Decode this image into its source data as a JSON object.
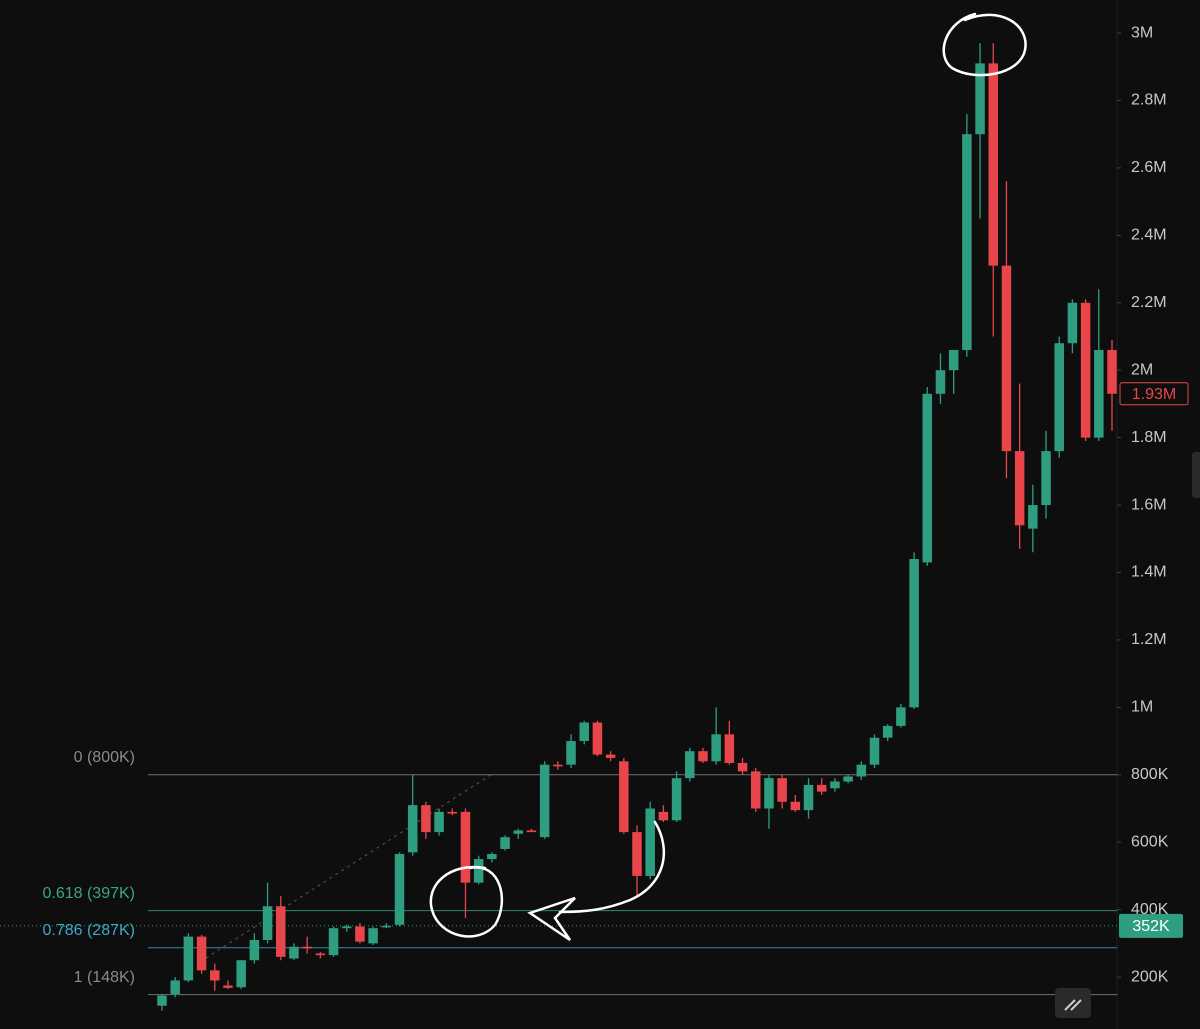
{
  "chart_data": {
    "type": "candlestick",
    "up_color": "#2f9e80",
    "down_color": "#e8464a",
    "ylim": [
      46000,
      3098000
    ],
    "yticks": [
      {
        "value": 200000,
        "label": "200K"
      },
      {
        "value": 400000,
        "label": "400K"
      },
      {
        "value": 600000,
        "label": "600K"
      },
      {
        "value": 800000,
        "label": "800K"
      },
      {
        "value": 1000000,
        "label": "1M"
      },
      {
        "value": 1200000,
        "label": "1.2M"
      },
      {
        "value": 1400000,
        "label": "1.4M"
      },
      {
        "value": 1600000,
        "label": "1.6M"
      },
      {
        "value": 1800000,
        "label": "1.8M"
      },
      {
        "value": 2000000,
        "label": "2M"
      },
      {
        "value": 2200000,
        "label": "2.2M"
      },
      {
        "value": 2400000,
        "label": "2.4M"
      },
      {
        "value": 2600000,
        "label": "2.6M"
      },
      {
        "value": 2800000,
        "label": "2.8M"
      },
      {
        "value": 3000000,
        "label": "3M"
      }
    ],
    "open": [
      115000,
      150000,
      190000,
      320000,
      220000,
      175000,
      170000,
      250000,
      310000,
      410000,
      255000,
      290000,
      270000,
      265000,
      345000,
      350000,
      300000,
      350000,
      355000,
      570000,
      710000,
      630000,
      690000,
      690000,
      480000,
      550000,
      580000,
      625000,
      635000,
      615000,
      830000,
      830000,
      900000,
      955000,
      860000,
      840000,
      630000,
      500000,
      690000,
      665000,
      790000,
      870000,
      840000,
      920000,
      835000,
      810000,
      700000,
      790000,
      720000,
      695000,
      770000,
      760000,
      780000,
      795000,
      830000,
      910000,
      945000,
      1000000,
      1430000,
      1930000,
      2000000,
      2060000,
      2700000,
      2910000,
      2310000,
      1760000,
      1530000,
      1600000,
      1760000,
      2080000,
      2200000,
      1800000,
      2060000
    ],
    "high": [
      150000,
      200000,
      330000,
      325000,
      240000,
      190000,
      250000,
      330000,
      480000,
      440000,
      300000,
      320000,
      275000,
      350000,
      355000,
      360000,
      350000,
      360000,
      570000,
      800000,
      720000,
      700000,
      700000,
      700000,
      560000,
      570000,
      620000,
      640000,
      640000,
      840000,
      840000,
      920000,
      960000,
      960000,
      870000,
      850000,
      650000,
      720000,
      710000,
      810000,
      880000,
      880000,
      1000000,
      960000,
      850000,
      820000,
      800000,
      800000,
      740000,
      790000,
      790000,
      790000,
      800000,
      840000,
      920000,
      950000,
      1010000,
      1460000,
      1950000,
      2050000,
      2060000,
      2760000,
      2970000,
      2970000,
      2560000,
      1960000,
      1660000,
      1820000,
      2100000,
      2210000,
      2210000,
      2240000,
      2090000
    ],
    "low": [
      100000,
      140000,
      185000,
      210000,
      160000,
      165000,
      165000,
      240000,
      300000,
      250000,
      250000,
      270000,
      255000,
      260000,
      335000,
      300000,
      295000,
      345000,
      350000,
      560000,
      610000,
      620000,
      680000,
      375000,
      475000,
      540000,
      575000,
      610000,
      630000,
      610000,
      815000,
      820000,
      890000,
      855000,
      840000,
      625000,
      440000,
      490000,
      660000,
      660000,
      780000,
      835000,
      830000,
      830000,
      800000,
      690000,
      640000,
      700000,
      690000,
      670000,
      740000,
      750000,
      775000,
      785000,
      820000,
      900000,
      940000,
      995000,
      1420000,
      1900000,
      1930000,
      2040000,
      2450000,
      2100000,
      1680000,
      1470000,
      1460000,
      1560000,
      1740000,
      2050000,
      1790000,
      1790000,
      1820000
    ],
    "close": [
      145000,
      190000,
      320000,
      220000,
      190000,
      168000,
      250000,
      310000,
      410000,
      260000,
      290000,
      285000,
      265000,
      345000,
      350000,
      305000,
      345000,
      352000,
      565000,
      710000,
      630000,
      690000,
      685000,
      480000,
      550000,
      565000,
      615000,
      635000,
      630000,
      830000,
      825000,
      900000,
      955000,
      860000,
      850000,
      630000,
      500000,
      700000,
      665000,
      790000,
      870000,
      840000,
      920000,
      835000,
      810000,
      700000,
      790000,
      720000,
      695000,
      770000,
      750000,
      780000,
      795000,
      830000,
      910000,
      945000,
      1000000,
      1440000,
      1930000,
      2000000,
      2060000,
      2700000,
      2910000,
      2310000,
      1760000,
      1540000,
      1600000,
      1760000,
      2080000,
      2200000,
      1800000,
      2060000,
      1930000
    ],
    "levels": [
      {
        "label": "0 (800K)",
        "value": 800000,
        "color": "#8a8a8a"
      },
      {
        "label": "0.618 (397K)",
        "value": 397000,
        "color": "#3aa58a"
      },
      {
        "label": "0.786 (287K)",
        "value": 287000,
        "color": "#3fa9c9"
      },
      {
        "label": "1 (148K)",
        "value": 148000,
        "color": "#8a8a8a"
      }
    ],
    "price_tags": [
      {
        "value": 1930000,
        "label": "1.93M",
        "color": "#e8464a",
        "style": "outline"
      },
      {
        "value": 352000,
        "label": "352K",
        "color": "#2f9e80",
        "style": "filled"
      }
    ]
  }
}
